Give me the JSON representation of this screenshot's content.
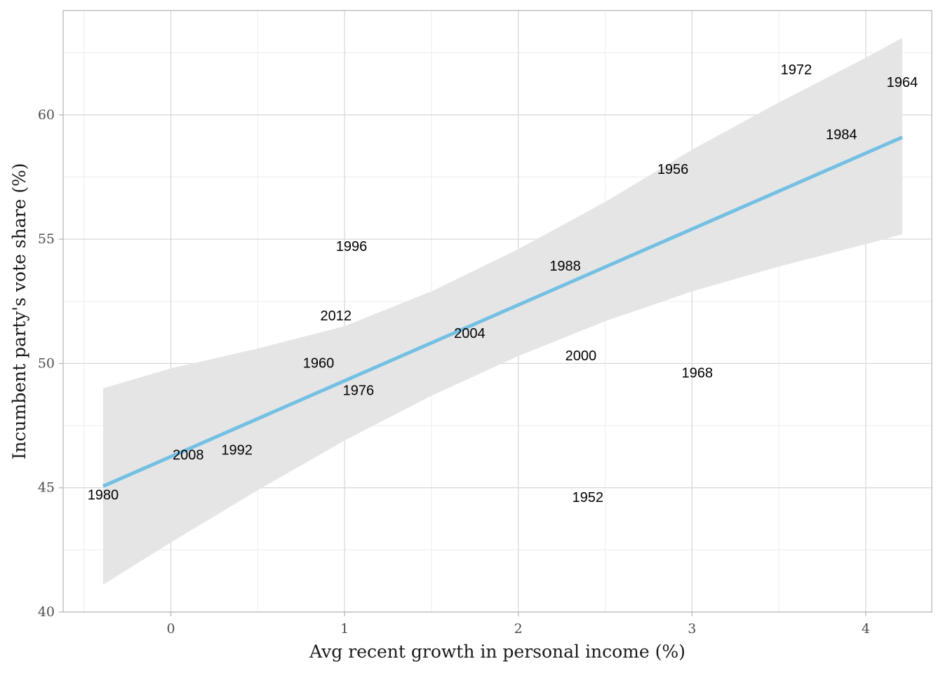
{
  "chart_data": {
    "type": "scatter",
    "title": "",
    "xlabel": "Avg recent growth in personal income (%)",
    "ylabel": "Incumbent party's vote share (%)",
    "xlim": [
      -0.62,
      4.38
    ],
    "ylim": [
      40,
      64.2
    ],
    "x_ticks": [
      0,
      1,
      2,
      3,
      4
    ],
    "y_ticks": [
      40,
      45,
      50,
      55,
      60
    ],
    "grid": true,
    "marker": "text-label",
    "points": [
      {
        "label": "1952",
        "x": 2.4,
        "y": 44.6
      },
      {
        "label": "1956",
        "x": 2.89,
        "y": 57.8
      },
      {
        "label": "1960",
        "x": 0.85,
        "y": 50.0
      },
      {
        "label": "1964",
        "x": 4.21,
        "y": 61.3
      },
      {
        "label": "1968",
        "x": 3.03,
        "y": 49.6
      },
      {
        "label": "1972",
        "x": 3.6,
        "y": 61.8
      },
      {
        "label": "1976",
        "x": 1.08,
        "y": 48.9
      },
      {
        "label": "1980",
        "x": -0.39,
        "y": 44.7
      },
      {
        "label": "1984",
        "x": 3.86,
        "y": 59.2
      },
      {
        "label": "1988",
        "x": 2.27,
        "y": 53.9
      },
      {
        "label": "1992",
        "x": 0.38,
        "y": 46.5
      },
      {
        "label": "1996",
        "x": 1.04,
        "y": 54.7
      },
      {
        "label": "2000",
        "x": 2.36,
        "y": 50.3
      },
      {
        "label": "2004",
        "x": 1.72,
        "y": 51.2
      },
      {
        "label": "2008",
        "x": 0.1,
        "y": 46.3
      },
      {
        "label": "2012",
        "x": 0.95,
        "y": 51.9
      }
    ],
    "fit_line": {
      "color": "#74c0e3",
      "x": [
        -0.39,
        4.21
      ],
      "y": [
        45.06,
        59.1
      ]
    },
    "confidence_band": {
      "color": "#e5e5e5",
      "x": [
        -0.39,
        0,
        0.5,
        1,
        1.5,
        2,
        2.5,
        3,
        3.5,
        4,
        4.21
      ],
      "lower": [
        41.1,
        42.8,
        44.9,
        46.9,
        48.7,
        50.3,
        51.7,
        52.9,
        53.9,
        54.8,
        55.2
      ],
      "upper": [
        49.0,
        49.8,
        50.6,
        51.5,
        52.9,
        54.6,
        56.5,
        58.6,
        60.5,
        62.3,
        63.1
      ]
    }
  }
}
